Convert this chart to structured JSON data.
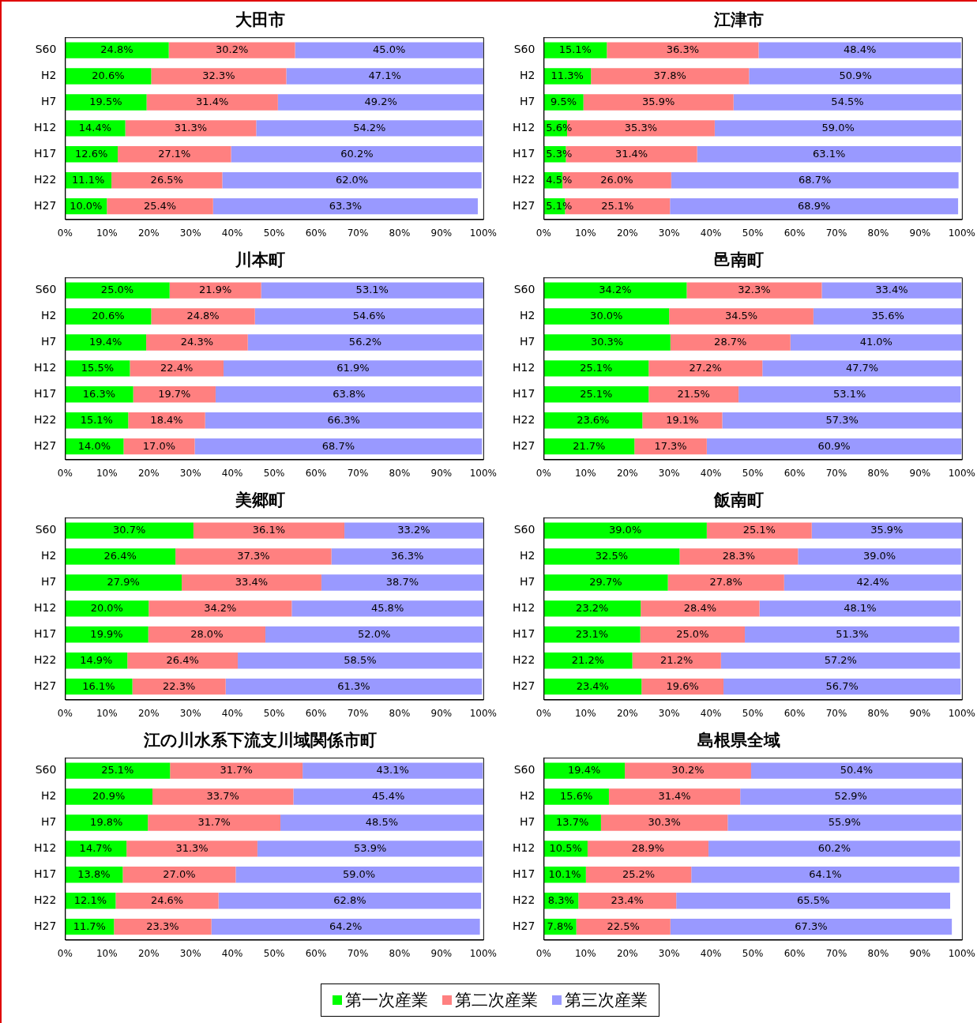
{
  "chart_data": [
    {
      "type": "bar",
      "title": "大田市",
      "orientation": "horizontal",
      "stacked": true,
      "legend": "bottom",
      "grid": false,
      "categories": [
        "S60",
        "H2",
        "H7",
        "H12",
        "H17",
        "H22",
        "H27"
      ],
      "xlim": [
        0,
        100
      ],
      "xticks": [
        {
          "value": 0,
          "label": "0%"
        },
        {
          "value": 10,
          "label": "10%"
        },
        {
          "value": 20,
          "label": "20%"
        },
        {
          "value": 30,
          "label": "30%"
        },
        {
          "value": 40,
          "label": "40%"
        },
        {
          "value": 50,
          "label": "50%"
        },
        {
          "value": 60,
          "label": "60%"
        },
        {
          "value": 70,
          "label": "70%"
        },
        {
          "value": 80,
          "label": "80%"
        },
        {
          "value": 90,
          "label": "90%"
        },
        {
          "value": 100,
          "label": "100%"
        }
      ],
      "series": [
        {
          "name": "第一次産業",
          "color": "#00ff00",
          "values": [
            24.8,
            20.6,
            19.5,
            14.4,
            12.6,
            11.1,
            10.0
          ],
          "value_labels": [
            "24.8%",
            "20.6%",
            "19.5%",
            "14.4%",
            "12.6%",
            "11.1%",
            "10.0%"
          ]
        },
        {
          "name": "第二次産業",
          "color": "#ff8080",
          "values": [
            30.2,
            32.3,
            31.4,
            31.3,
            27.1,
            26.5,
            25.4
          ],
          "value_labels": [
            "30.2%",
            "32.3%",
            "31.4%",
            "31.3%",
            "27.1%",
            "26.5%",
            "25.4%"
          ]
        },
        {
          "name": "第三次産業",
          "color": "#9999ff",
          "values": [
            45.0,
            47.1,
            49.2,
            54.2,
            60.2,
            62.0,
            63.3
          ],
          "value_labels": [
            "45.0%",
            "47.1%",
            "49.2%",
            "54.2%",
            "60.2%",
            "62.0%",
            "63.3%"
          ]
        }
      ]
    },
    {
      "type": "bar",
      "title": "江津市",
      "orientation": "horizontal",
      "stacked": true,
      "legend": "bottom",
      "grid": false,
      "categories": [
        "S60",
        "H2",
        "H7",
        "H12",
        "H17",
        "H22",
        "H27"
      ],
      "xlim": [
        0,
        100
      ],
      "xticks": [
        {
          "value": 0,
          "label": "0%"
        },
        {
          "value": 10,
          "label": "10%"
        },
        {
          "value": 20,
          "label": "20%"
        },
        {
          "value": 30,
          "label": "30%"
        },
        {
          "value": 40,
          "label": "40%"
        },
        {
          "value": 50,
          "label": "50%"
        },
        {
          "value": 60,
          "label": "60%"
        },
        {
          "value": 70,
          "label": "70%"
        },
        {
          "value": 80,
          "label": "80%"
        },
        {
          "value": 90,
          "label": "90%"
        },
        {
          "value": 100,
          "label": "100%"
        }
      ],
      "series": [
        {
          "name": "第一次産業",
          "color": "#00ff00",
          "values": [
            15.1,
            11.3,
            9.5,
            5.6,
            5.3,
            4.5,
            5.1
          ],
          "value_labels": [
            "15.1%",
            "11.3%",
            "9.5%",
            "5.6%",
            "5.3%",
            "4.5%",
            "5.1%"
          ]
        },
        {
          "name": "第二次産業",
          "color": "#ff8080",
          "values": [
            36.3,
            37.8,
            35.9,
            35.3,
            31.4,
            26.0,
            25.1
          ],
          "value_labels": [
            "36.3%",
            "37.8%",
            "35.9%",
            "35.3%",
            "31.4%",
            "26.0%",
            "25.1%"
          ]
        },
        {
          "name": "第三次産業",
          "color": "#9999ff",
          "values": [
            48.4,
            50.9,
            54.5,
            59.0,
            63.1,
            68.7,
            68.9
          ],
          "value_labels": [
            "48.4%",
            "50.9%",
            "54.5%",
            "59.0%",
            "63.1%",
            "68.7%",
            "68.9%"
          ]
        }
      ]
    },
    {
      "type": "bar",
      "title": "川本町",
      "orientation": "horizontal",
      "stacked": true,
      "legend": "bottom",
      "grid": false,
      "categories": [
        "S60",
        "H2",
        "H7",
        "H12",
        "H17",
        "H22",
        "H27"
      ],
      "xlim": [
        0,
        100
      ],
      "xticks": [
        {
          "value": 0,
          "label": "0%"
        },
        {
          "value": 10,
          "label": "10%"
        },
        {
          "value": 20,
          "label": "20%"
        },
        {
          "value": 30,
          "label": "30%"
        },
        {
          "value": 40,
          "label": "40%"
        },
        {
          "value": 50,
          "label": "50%"
        },
        {
          "value": 60,
          "label": "60%"
        },
        {
          "value": 70,
          "label": "70%"
        },
        {
          "value": 80,
          "label": "80%"
        },
        {
          "value": 90,
          "label": "90%"
        },
        {
          "value": 100,
          "label": "100%"
        }
      ],
      "series": [
        {
          "name": "第一次産業",
          "color": "#00ff00",
          "values": [
            25.0,
            20.6,
            19.4,
            15.5,
            16.3,
            15.1,
            14.0
          ],
          "value_labels": [
            "25.0%",
            "20.6%",
            "19.4%",
            "15.5%",
            "16.3%",
            "15.1%",
            "14.0%"
          ]
        },
        {
          "name": "第二次産業",
          "color": "#ff8080",
          "values": [
            21.9,
            24.8,
            24.3,
            22.4,
            19.7,
            18.4,
            17.0
          ],
          "value_labels": [
            "21.9%",
            "24.8%",
            "24.3%",
            "22.4%",
            "19.7%",
            "18.4%",
            "17.0%"
          ]
        },
        {
          "name": "第三次産業",
          "color": "#9999ff",
          "values": [
            53.1,
            54.6,
            56.2,
            61.9,
            63.8,
            66.3,
            68.7
          ],
          "value_labels": [
            "53.1%",
            "54.6%",
            "56.2%",
            "61.9%",
            "63.8%",
            "66.3%",
            "68.7%"
          ]
        }
      ]
    },
    {
      "type": "bar",
      "title": "邑南町",
      "orientation": "horizontal",
      "stacked": true,
      "legend": "bottom",
      "grid": false,
      "categories": [
        "S60",
        "H2",
        "H7",
        "H12",
        "H17",
        "H22",
        "H27"
      ],
      "xlim": [
        0,
        100
      ],
      "xticks": [
        {
          "value": 0,
          "label": "0%"
        },
        {
          "value": 10,
          "label": "10%"
        },
        {
          "value": 20,
          "label": "20%"
        },
        {
          "value": 30,
          "label": "30%"
        },
        {
          "value": 40,
          "label": "40%"
        },
        {
          "value": 50,
          "label": "50%"
        },
        {
          "value": 60,
          "label": "60%"
        },
        {
          "value": 70,
          "label": "70%"
        },
        {
          "value": 80,
          "label": "80%"
        },
        {
          "value": 90,
          "label": "90%"
        },
        {
          "value": 100,
          "label": "100%"
        }
      ],
      "series": [
        {
          "name": "第一次産業",
          "color": "#00ff00",
          "values": [
            34.2,
            30.0,
            30.3,
            25.1,
            25.1,
            23.6,
            21.7
          ],
          "value_labels": [
            "34.2%",
            "30.0%",
            "30.3%",
            "25.1%",
            "25.1%",
            "23.6%",
            "21.7%"
          ]
        },
        {
          "name": "第二次産業",
          "color": "#ff8080",
          "values": [
            32.3,
            34.5,
            28.7,
            27.2,
            21.5,
            19.1,
            17.3
          ],
          "value_labels": [
            "32.3%",
            "34.5%",
            "28.7%",
            "27.2%",
            "21.5%",
            "19.1%",
            "17.3%"
          ]
        },
        {
          "name": "第三次産業",
          "color": "#9999ff",
          "values": [
            33.4,
            35.6,
            41.0,
            47.7,
            53.1,
            57.3,
            60.9
          ],
          "value_labels": [
            "33.4%",
            "35.6%",
            "41.0%",
            "47.7%",
            "53.1%",
            "57.3%",
            "60.9%"
          ]
        }
      ]
    },
    {
      "type": "bar",
      "title": "美郷町",
      "orientation": "horizontal",
      "stacked": true,
      "legend": "bottom",
      "grid": false,
      "categories": [
        "S60",
        "H2",
        "H7",
        "H12",
        "H17",
        "H22",
        "H27"
      ],
      "xlim": [
        0,
        100
      ],
      "xticks": [
        {
          "value": 0,
          "label": "0%"
        },
        {
          "value": 10,
          "label": "10%"
        },
        {
          "value": 20,
          "label": "20%"
        },
        {
          "value": 30,
          "label": "30%"
        },
        {
          "value": 40,
          "label": "40%"
        },
        {
          "value": 50,
          "label": "50%"
        },
        {
          "value": 60,
          "label": "60%"
        },
        {
          "value": 70,
          "label": "70%"
        },
        {
          "value": 80,
          "label": "80%"
        },
        {
          "value": 90,
          "label": "90%"
        },
        {
          "value": 100,
          "label": "100%"
        }
      ],
      "series": [
        {
          "name": "第一次産業",
          "color": "#00ff00",
          "values": [
            30.7,
            26.4,
            27.9,
            20.0,
            19.9,
            14.9,
            16.1
          ],
          "value_labels": [
            "30.7%",
            "26.4%",
            "27.9%",
            "20.0%",
            "19.9%",
            "14.9%",
            "16.1%"
          ]
        },
        {
          "name": "第二次産業",
          "color": "#ff8080",
          "values": [
            36.1,
            37.3,
            33.4,
            34.2,
            28.0,
            26.4,
            22.3
          ],
          "value_labels": [
            "36.1%",
            "37.3%",
            "33.4%",
            "34.2%",
            "28.0%",
            "26.4%",
            "22.3%"
          ]
        },
        {
          "name": "第三次産業",
          "color": "#9999ff",
          "values": [
            33.2,
            36.3,
            38.7,
            45.8,
            52.0,
            58.5,
            61.3
          ],
          "value_labels": [
            "33.2%",
            "36.3%",
            "38.7%",
            "45.8%",
            "52.0%",
            "58.5%",
            "61.3%"
          ]
        }
      ]
    },
    {
      "type": "bar",
      "title": "飯南町",
      "orientation": "horizontal",
      "stacked": true,
      "legend": "bottom",
      "grid": false,
      "categories": [
        "S60",
        "H2",
        "H7",
        "H12",
        "H17",
        "H22",
        "H27"
      ],
      "xlim": [
        0,
        100
      ],
      "xticks": [
        {
          "value": 0,
          "label": "0%"
        },
        {
          "value": 10,
          "label": "10%"
        },
        {
          "value": 20,
          "label": "20%"
        },
        {
          "value": 30,
          "label": "30%"
        },
        {
          "value": 40,
          "label": "40%"
        },
        {
          "value": 50,
          "label": "50%"
        },
        {
          "value": 60,
          "label": "60%"
        },
        {
          "value": 70,
          "label": "70%"
        },
        {
          "value": 80,
          "label": "80%"
        },
        {
          "value": 90,
          "label": "90%"
        },
        {
          "value": 100,
          "label": "100%"
        }
      ],
      "series": [
        {
          "name": "第一次産業",
          "color": "#00ff00",
          "values": [
            39.0,
            32.5,
            29.7,
            23.2,
            23.1,
            21.2,
            23.4
          ],
          "value_labels": [
            "39.0%",
            "32.5%",
            "29.7%",
            "23.2%",
            "23.1%",
            "21.2%",
            "23.4%"
          ]
        },
        {
          "name": "第二次産業",
          "color": "#ff8080",
          "values": [
            25.1,
            28.3,
            27.8,
            28.4,
            25.0,
            21.2,
            19.6
          ],
          "value_labels": [
            "25.1%",
            "28.3%",
            "27.8%",
            "28.4%",
            "25.0%",
            "21.2%",
            "19.6%"
          ]
        },
        {
          "name": "第三次産業",
          "color": "#9999ff",
          "values": [
            35.9,
            39.0,
            42.4,
            48.1,
            51.3,
            57.2,
            56.7
          ],
          "value_labels": [
            "35.9%",
            "39.0%",
            "42.4%",
            "48.1%",
            "51.3%",
            "57.2%",
            "56.7%"
          ]
        }
      ]
    },
    {
      "type": "bar",
      "title": "江の川水系下流支川域関係市町",
      "orientation": "horizontal",
      "stacked": true,
      "legend": "bottom",
      "grid": false,
      "categories": [
        "S60",
        "H2",
        "H7",
        "H12",
        "H17",
        "H22",
        "H27"
      ],
      "xlim": [
        0,
        100
      ],
      "xticks": [
        {
          "value": 0,
          "label": "0%"
        },
        {
          "value": 10,
          "label": "10%"
        },
        {
          "value": 20,
          "label": "20%"
        },
        {
          "value": 30,
          "label": "30%"
        },
        {
          "value": 40,
          "label": "40%"
        },
        {
          "value": 50,
          "label": "50%"
        },
        {
          "value": 60,
          "label": "60%"
        },
        {
          "value": 70,
          "label": "70%"
        },
        {
          "value": 80,
          "label": "80%"
        },
        {
          "value": 90,
          "label": "90%"
        },
        {
          "value": 100,
          "label": "100%"
        }
      ],
      "series": [
        {
          "name": "第一次産業",
          "color": "#00ff00",
          "values": [
            25.1,
            20.9,
            19.8,
            14.7,
            13.8,
            12.1,
            11.7
          ],
          "value_labels": [
            "25.1%",
            "20.9%",
            "19.8%",
            "14.7%",
            "13.8%",
            "12.1%",
            "11.7%"
          ]
        },
        {
          "name": "第二次産業",
          "color": "#ff8080",
          "values": [
            31.7,
            33.7,
            31.7,
            31.3,
            27.0,
            24.6,
            23.3
          ],
          "value_labels": [
            "31.7%",
            "33.7%",
            "31.7%",
            "31.3%",
            "27.0%",
            "24.6%",
            "23.3%"
          ]
        },
        {
          "name": "第三次産業",
          "color": "#9999ff",
          "values": [
            43.1,
            45.4,
            48.5,
            53.9,
            59.0,
            62.8,
            64.2
          ],
          "value_labels": [
            "43.1%",
            "45.4%",
            "48.5%",
            "53.9%",
            "59.0%",
            "62.8%",
            "64.2%"
          ]
        }
      ]
    },
    {
      "type": "bar",
      "title": "島根県全域",
      "orientation": "horizontal",
      "stacked": true,
      "legend": "bottom",
      "grid": false,
      "categories": [
        "S60",
        "H2",
        "H7",
        "H12",
        "H17",
        "H22",
        "H27"
      ],
      "xlim": [
        0,
        100
      ],
      "xticks": [
        {
          "value": 0,
          "label": "0%"
        },
        {
          "value": 10,
          "label": "10%"
        },
        {
          "value": 20,
          "label": "20%"
        },
        {
          "value": 30,
          "label": "30%"
        },
        {
          "value": 40,
          "label": "40%"
        },
        {
          "value": 50,
          "label": "50%"
        },
        {
          "value": 60,
          "label": "60%"
        },
        {
          "value": 70,
          "label": "70%"
        },
        {
          "value": 80,
          "label": "80%"
        },
        {
          "value": 90,
          "label": "90%"
        },
        {
          "value": 100,
          "label": "100%"
        }
      ],
      "series": [
        {
          "name": "第一次産業",
          "color": "#00ff00",
          "values": [
            19.4,
            15.6,
            13.7,
            10.5,
            10.1,
            8.3,
            7.8
          ],
          "value_labels": [
            "19.4%",
            "15.6%",
            "13.7%",
            "10.5%",
            "10.1%",
            "8.3%",
            "7.8%"
          ]
        },
        {
          "name": "第二次産業",
          "color": "#ff8080",
          "values": [
            30.2,
            31.4,
            30.3,
            28.9,
            25.2,
            23.4,
            22.5
          ],
          "value_labels": [
            "30.2%",
            "31.4%",
            "30.3%",
            "28.9%",
            "25.2%",
            "23.4%",
            "22.5%"
          ]
        },
        {
          "name": "第三次産業",
          "color": "#9999ff",
          "values": [
            50.4,
            52.9,
            55.9,
            60.2,
            64.1,
            65.5,
            67.3
          ],
          "value_labels": [
            "50.4%",
            "52.9%",
            "55.9%",
            "60.2%",
            "64.1%",
            "65.5%",
            "67.3%"
          ]
        }
      ]
    }
  ]
}
